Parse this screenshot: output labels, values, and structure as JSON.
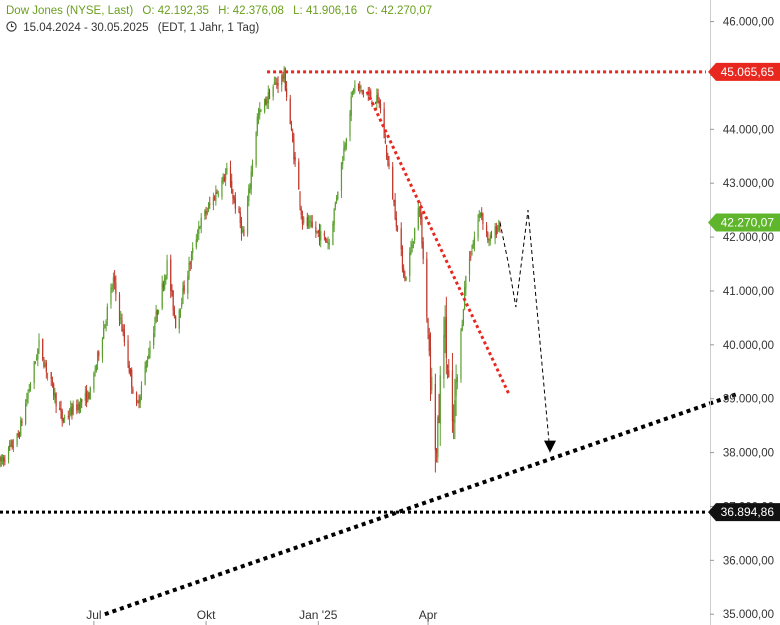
{
  "header": {
    "instrument": "Dow Jones (NYSE, Last)",
    "open": "O: 42.192,35",
    "high": "H: 42.376,08",
    "low": "L: 41.906,16",
    "close": "C: 42.270,07",
    "range": "15.04.2024 - 30.05.2025",
    "meta": "(EDT, 1 Jahr, 1 Tag)",
    "clock_icon": "clock-icon"
  },
  "chart_data": {
    "type": "candlestick",
    "x_start": "2024-04-15",
    "x_end": "2025-05-30",
    "ylim": [
      34800,
      46400
    ],
    "y_ticks": [
      46000,
      45000,
      44000,
      43000,
      42000,
      41000,
      40000,
      39000,
      38000,
      37000,
      36000,
      35000
    ],
    "y_tick_labels": [
      "46.000,00",
      "45.000,00",
      "44.000,00",
      "43.000,00",
      "42.000,00",
      "41.000,00",
      "40.000,00",
      "39.000,00",
      "38.000,00",
      "37.000,00",
      "36.000,00",
      "35.000,00"
    ],
    "x_ticks": [
      {
        "date": "2024-07-01",
        "label": "Jul"
      },
      {
        "date": "2024-10-01",
        "label": "Okt"
      },
      {
        "date": "2025-01-01",
        "label": "Jan '25"
      },
      {
        "date": "2025-04-01",
        "label": "Apr"
      }
    ],
    "grid": false,
    "up_color": "#5a9e2e",
    "down_color": "#c0392b",
    "anchors": [
      {
        "date": "2024-04-15",
        "value": 37800
      },
      {
        "date": "2024-04-30",
        "value": 38300
      },
      {
        "date": "2024-05-17",
        "value": 40000
      },
      {
        "date": "2024-06-05",
        "value": 38600
      },
      {
        "date": "2024-06-28",
        "value": 39100
      },
      {
        "date": "2024-07-17",
        "value": 41200
      },
      {
        "date": "2024-08-05",
        "value": 38800
      },
      {
        "date": "2024-08-30",
        "value": 41500
      },
      {
        "date": "2024-09-06",
        "value": 40400
      },
      {
        "date": "2024-09-25",
        "value": 42200
      },
      {
        "date": "2024-10-18",
        "value": 43200
      },
      {
        "date": "2024-11-01",
        "value": 42000
      },
      {
        "date": "2024-11-12",
        "value": 44200
      },
      {
        "date": "2024-11-25",
        "value": 44800
      },
      {
        "date": "2024-12-04",
        "value": 45000
      },
      {
        "date": "2024-12-19",
        "value": 42300
      },
      {
        "date": "2025-01-10",
        "value": 41900
      },
      {
        "date": "2025-01-30",
        "value": 44800
      },
      {
        "date": "2025-02-20",
        "value": 44500
      },
      {
        "date": "2025-03-13",
        "value": 41200
      },
      {
        "date": "2025-03-25",
        "value": 42600
      },
      {
        "date": "2025-04-08",
        "value": 37900
      },
      {
        "date": "2025-04-14",
        "value": 40500
      },
      {
        "date": "2025-04-21",
        "value": 38300
      },
      {
        "date": "2025-05-02",
        "value": 41300
      },
      {
        "date": "2025-05-14",
        "value": 42500
      },
      {
        "date": "2025-05-21",
        "value": 41900
      },
      {
        "date": "2025-05-30",
        "value": 42270
      }
    ],
    "last_value": 42270.07,
    "last_label": "42.270,07",
    "resistance": {
      "value": 45065.65,
      "label": "45.065,65",
      "from_date": "2024-11-20",
      "color": "#e8271e"
    },
    "support": {
      "value": 36894.86,
      "label": "36.894,86",
      "color": "#000000"
    },
    "downtrend": {
      "from": {
        "date": "2025-02-10",
        "value": 44700
      },
      "to": {
        "date": "2025-06-06",
        "value": 39100
      },
      "color": "#e8271e"
    },
    "uptrend": {
      "from": {
        "date": "2024-07-10",
        "value": 35000
      },
      "to": {
        "date": "2025-12-12",
        "value": 39100
      },
      "color": "#000000"
    },
    "projection": [
      {
        "date": "2025-05-30",
        "value": 42270
      },
      {
        "date": "2025-06-06",
        "value": 41500
      },
      {
        "date": "2025-06-12",
        "value": 40700
      },
      {
        "date": "2025-06-22",
        "value": 42500
      },
      {
        "date": "2025-07-10",
        "value": 38000
      }
    ]
  }
}
